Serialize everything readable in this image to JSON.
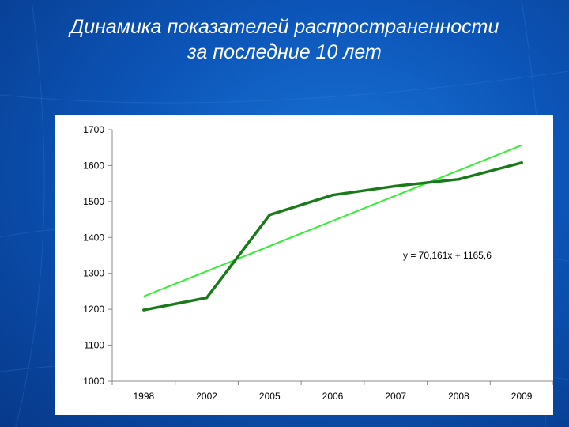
{
  "slide": {
    "title_line1": "Динамика показателей распространенности",
    "title_line2": "за последние 10 лет"
  },
  "colors": {
    "background": "#0c55b8",
    "data_line": "#1a7a1a",
    "trend_line": "#33ee33",
    "panel": "#ffffff"
  },
  "chart_data": {
    "type": "line",
    "categories": [
      "1998",
      "2002",
      "2005",
      "2006",
      "2007",
      "2008",
      "2009"
    ],
    "series": [
      {
        "values": [
          1198,
          1232,
          1463,
          1518,
          1543,
          1562,
          1608
        ]
      }
    ],
    "trendline": {
      "equation": "y = 70,161x + 1165,6",
      "slope": 70.161,
      "intercept": 1165.6,
      "start_value": 1235.8,
      "end_value": 1656.7
    },
    "ylim": [
      1000,
      1700
    ],
    "yticks": [
      "1000",
      "1100",
      "1200",
      "1300",
      "1400",
      "1500",
      "1600",
      "1700"
    ],
    "grid": false,
    "legend": "none"
  }
}
